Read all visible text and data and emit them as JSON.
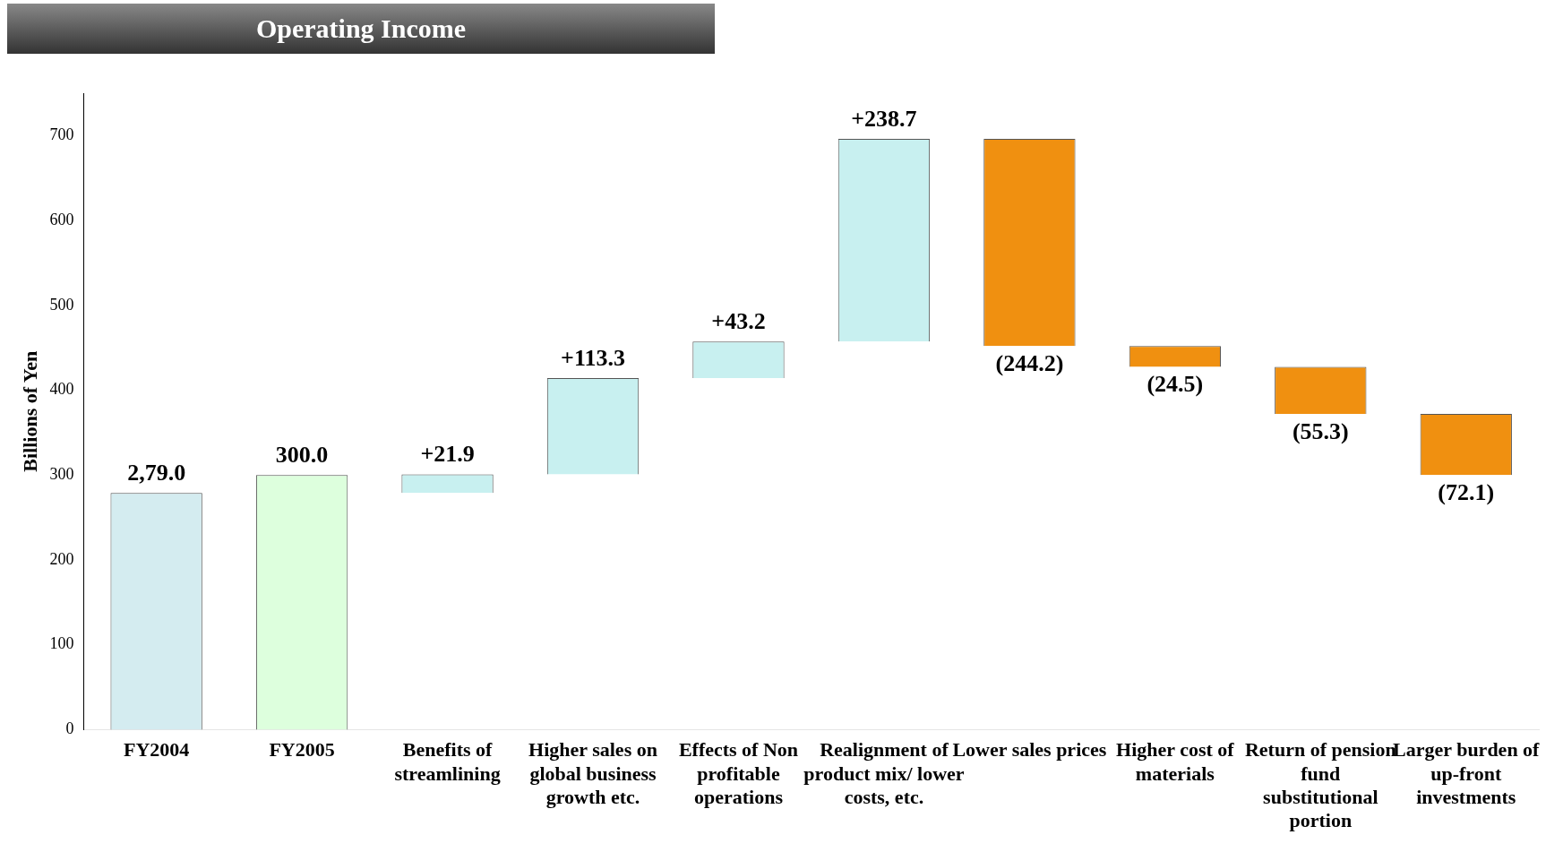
{
  "chart_data": {
    "type": "bar",
    "title": "Operating Income",
    "ylabel": "Billions of Yen",
    "ylim": [
      0,
      750
    ],
    "yticks": [
      0,
      100,
      200,
      300,
      400,
      500,
      600,
      700
    ],
    "categories": [
      "FY2004",
      "FY2005",
      "Benefits of streamlining",
      "Higher sales on global business growth etc.",
      "Effects of Non profitable operations",
      "Realignment of product mix/ lower costs, etc.",
      "Lower sales prices",
      "Higher cost of materials",
      "Return of pension fund substitutional portion",
      "Larger burden of up-front investments"
    ],
    "values": [
      279.0,
      300.0,
      21.9,
      113.3,
      43.2,
      238.7,
      -244.2,
      -24.5,
      -55.3,
      -72.1
    ],
    "base": [
      0,
      0,
      279.0,
      300.9,
      414.2,
      457.4,
      696.1,
      451.9,
      427.4,
      372.1
    ],
    "colors": [
      "#d4ecf0",
      "#ddffdd",
      "#c8f0f0",
      "#c8f0f0",
      "#c8f0f0",
      "#c8f0f0",
      "#f09010",
      "#f09010",
      "#f09010",
      "#f09010"
    ],
    "value_labels": [
      "2,79.0",
      "300.0",
      "+21.9",
      "+113.3",
      "+43.2",
      "+238.7",
      "(244.2)",
      "(24.5)",
      "(55.3)",
      "(72.1)"
    ]
  }
}
